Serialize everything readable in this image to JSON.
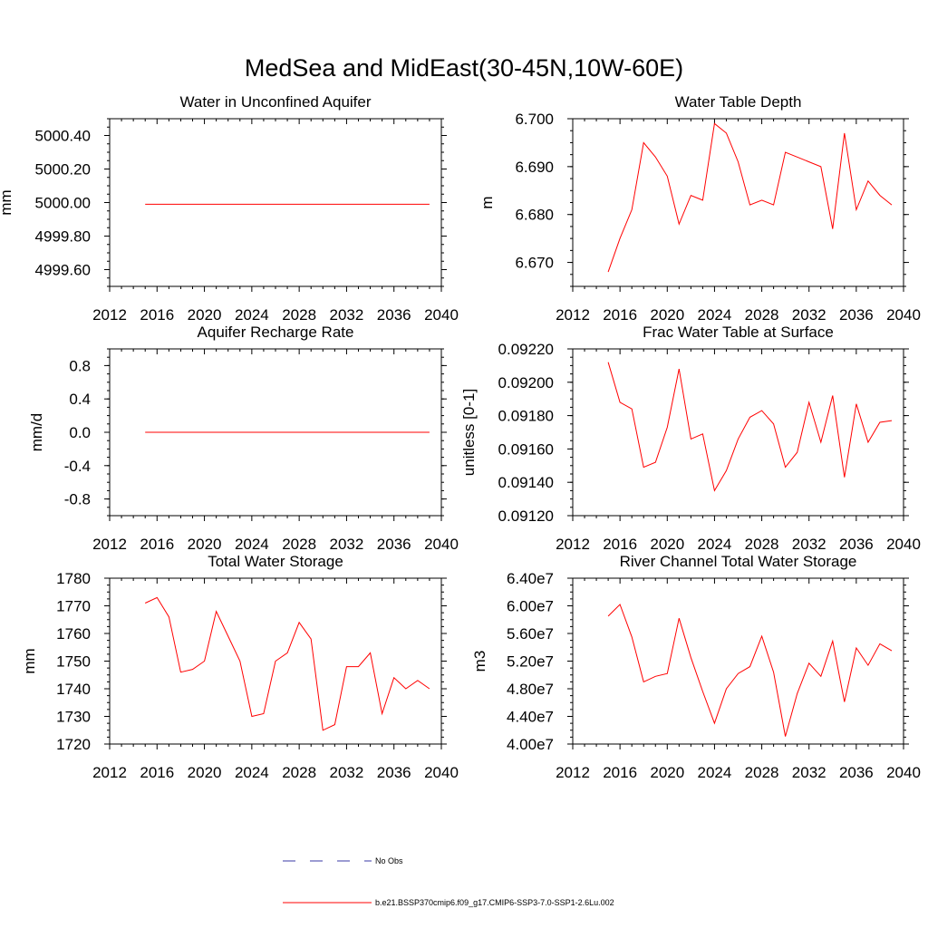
{
  "figure": {
    "title": "MedSea and MidEast(30-45N,10W-60E)",
    "legend": {
      "obs_label": "No Obs",
      "model_label": "b.e21.BSSP370cmip6.f09_g17.CMIP6-SSP3-7.0-SSP1-2.6Lu.002",
      "obs_color": "#3a3aa6",
      "model_color": "#ff0000"
    }
  },
  "chart_data": [
    {
      "type": "line",
      "title": "Water in Unconfined Aquifer",
      "ylabel": "mm",
      "xlabel": "",
      "xlim": [
        2012,
        2040
      ],
      "ylim": [
        4999.5,
        5000.5
      ],
      "xticks": [
        "2012",
        "2016",
        "2020",
        "2024",
        "2028",
        "2032",
        "2036",
        "2040"
      ],
      "yticks": [
        "4999.60",
        "4999.80",
        "5000.00",
        "5000.20",
        "5000.40"
      ],
      "x": [
        2015,
        2016,
        2017,
        2018,
        2019,
        2020,
        2021,
        2022,
        2023,
        2024,
        2025,
        2026,
        2027,
        2028,
        2029,
        2030,
        2031,
        2032,
        2033,
        2034,
        2035,
        2036,
        2037,
        2038,
        2039
      ],
      "values": [
        4999.99,
        4999.99,
        4999.99,
        4999.99,
        4999.99,
        4999.99,
        4999.99,
        4999.99,
        4999.99,
        4999.99,
        4999.99,
        4999.99,
        4999.99,
        4999.99,
        4999.99,
        4999.99,
        4999.99,
        4999.99,
        4999.99,
        4999.99,
        4999.99,
        4999.99,
        4999.99,
        4999.99,
        4999.99
      ]
    },
    {
      "type": "line",
      "title": "Water Table Depth",
      "ylabel": "m",
      "xlabel": "",
      "xlim": [
        2012,
        2040
      ],
      "ylim": [
        6.665,
        6.7
      ],
      "xticks": [
        "2012",
        "2016",
        "2020",
        "2024",
        "2028",
        "2032",
        "2036",
        "2040"
      ],
      "yticks": [
        "6.670",
        "6.680",
        "6.690",
        "6.700"
      ],
      "x": [
        2015,
        2016,
        2017,
        2018,
        2019,
        2020,
        2021,
        2022,
        2023,
        2024,
        2025,
        2026,
        2027,
        2028,
        2029,
        2030,
        2031,
        2032,
        2033,
        2034,
        2035,
        2036,
        2037,
        2038,
        2039
      ],
      "values": [
        6.668,
        6.675,
        6.681,
        6.695,
        6.692,
        6.688,
        6.678,
        6.684,
        6.683,
        6.699,
        6.697,
        6.691,
        6.682,
        6.683,
        6.682,
        6.693,
        6.692,
        6.691,
        6.69,
        6.677,
        6.697,
        6.681,
        6.687,
        6.684,
        6.682
      ]
    },
    {
      "type": "line",
      "title": "Aquifer Recharge Rate",
      "ylabel": "mm/d",
      "xlabel": "",
      "xlim": [
        2012,
        2040
      ],
      "ylim": [
        -1.0,
        1.0
      ],
      "xticks": [
        "2012",
        "2016",
        "2020",
        "2024",
        "2028",
        "2032",
        "2036",
        "2040"
      ],
      "yticks": [
        "-0.8",
        "-0.4",
        "0.0",
        "0.4",
        "0.8"
      ],
      "x": [
        2015,
        2016,
        2017,
        2018,
        2019,
        2020,
        2021,
        2022,
        2023,
        2024,
        2025,
        2026,
        2027,
        2028,
        2029,
        2030,
        2031,
        2032,
        2033,
        2034,
        2035,
        2036,
        2037,
        2038,
        2039
      ],
      "values": [
        0,
        0,
        0,
        0,
        0,
        0,
        0,
        0,
        0,
        0,
        0,
        0,
        0,
        0,
        0,
        0,
        0,
        0,
        0,
        0,
        0,
        0,
        0,
        0,
        0
      ]
    },
    {
      "type": "line",
      "title": "Frac Water Table at Surface",
      "ylabel": "unitless [0-1]",
      "xlabel": "",
      "xlim": [
        2012,
        2040
      ],
      "ylim": [
        0.0912,
        0.0922
      ],
      "xticks": [
        "2012",
        "2016",
        "2020",
        "2024",
        "2028",
        "2032",
        "2036",
        "2040"
      ],
      "yticks": [
        "0.09120",
        "0.09140",
        "0.09160",
        "0.09180",
        "0.09200",
        "0.09220"
      ],
      "x": [
        2015,
        2016,
        2017,
        2018,
        2019,
        2020,
        2021,
        2022,
        2023,
        2024,
        2025,
        2026,
        2027,
        2028,
        2029,
        2030,
        2031,
        2032,
        2033,
        2034,
        2035,
        2036,
        2037,
        2038,
        2039
      ],
      "values": [
        0.09212,
        0.09188,
        0.09184,
        0.09149,
        0.09152,
        0.09173,
        0.09208,
        0.09166,
        0.09169,
        0.09135,
        0.09147,
        0.09166,
        0.09179,
        0.09183,
        0.09175,
        0.09149,
        0.09158,
        0.09188,
        0.09164,
        0.09192,
        0.09143,
        0.09187,
        0.09164,
        0.09176,
        0.09177
      ]
    },
    {
      "type": "line",
      "title": "Total Water Storage",
      "ylabel": "mm",
      "xlabel": "",
      "xlim": [
        2012,
        2040
      ],
      "ylim": [
        1720,
        1780
      ],
      "xticks": [
        "2012",
        "2016",
        "2020",
        "2024",
        "2028",
        "2032",
        "2036",
        "2040"
      ],
      "yticks": [
        "1720",
        "1730",
        "1740",
        "1750",
        "1760",
        "1770",
        "1780"
      ],
      "x": [
        2015,
        2016,
        2017,
        2018,
        2019,
        2020,
        2021,
        2022,
        2023,
        2024,
        2025,
        2026,
        2027,
        2028,
        2029,
        2030,
        2031,
        2032,
        2033,
        2034,
        2035,
        2036,
        2037,
        2038,
        2039
      ],
      "values": [
        1771,
        1773,
        1766,
        1746,
        1747,
        1750,
        1768,
        1759,
        1750,
        1730,
        1731,
        1750,
        1753,
        1764,
        1758,
        1725,
        1727,
        1748,
        1748,
        1753,
        1731,
        1744,
        1740,
        1743,
        1740
      ]
    },
    {
      "type": "line",
      "title": "River Channel Total Water Storage",
      "ylabel": "m3",
      "xlabel": "",
      "xlim": [
        2012,
        2040
      ],
      "ylim": [
        40000000,
        64000000
      ],
      "xticks": [
        "2012",
        "2016",
        "2020",
        "2024",
        "2028",
        "2032",
        "2036",
        "2040"
      ],
      "yticks": [
        "4.00e7",
        "4.40e7",
        "4.80e7",
        "5.20e7",
        "5.60e7",
        "6.00e7",
        "6.40e7"
      ],
      "x": [
        2015,
        2016,
        2017,
        2018,
        2019,
        2020,
        2021,
        2022,
        2023,
        2024,
        2025,
        2026,
        2027,
        2028,
        2029,
        2030,
        2031,
        2032,
        2033,
        2034,
        2035,
        2036,
        2037,
        2038,
        2039
      ],
      "values": [
        58500000,
        60200000,
        55500000,
        49000000,
        49800000,
        50200000,
        58200000,
        52500000,
        47600000,
        43000000,
        48000000,
        50200000,
        51200000,
        55600000,
        50400000,
        41100000,
        47300000,
        51700000,
        49800000,
        54900000,
        46100000,
        53900000,
        51400000,
        54500000,
        53500000
      ]
    }
  ]
}
